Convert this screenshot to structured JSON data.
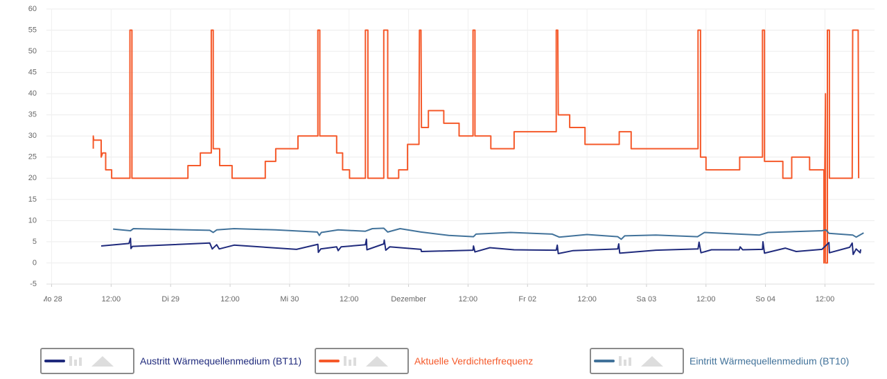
{
  "chart_data": {
    "type": "line",
    "xlim": [
      -1.05,
      166
    ],
    "xticks": [
      {
        "value": 0,
        "label": "Mo 28"
      },
      {
        "value": 12,
        "label": "12:00"
      },
      {
        "value": 24,
        "label": "Di 29"
      },
      {
        "value": 36,
        "label": "12:00"
      },
      {
        "value": 48,
        "label": "Mi 30"
      },
      {
        "value": 60,
        "label": "12:00"
      },
      {
        "value": 72,
        "label": "Dezember"
      },
      {
        "value": 84,
        "label": "12:00"
      },
      {
        "value": 96,
        "label": "Fr 02"
      },
      {
        "value": 108,
        "label": "12:00"
      },
      {
        "value": 120,
        "label": "Sa 03"
      },
      {
        "value": 132,
        "label": "12:00"
      },
      {
        "value": 144,
        "label": "So 04"
      },
      {
        "value": 156,
        "label": "12:00"
      }
    ],
    "ylim": [
      -5,
      60
    ],
    "yticks": [
      -5,
      0,
      5,
      10,
      15,
      20,
      25,
      30,
      35,
      40,
      45,
      50,
      55,
      60
    ],
    "grid": true,
    "series": [
      {
        "name": "Austritt Wärmequellenmedium (BT11)",
        "color": "#1f2a7c",
        "x": [
          10.0,
          15.6,
          15.9,
          16.0,
          16.3,
          31.9,
          32.4,
          33.3,
          33.8,
          36.8,
          49.4,
          53.7,
          53.8,
          54.3,
          57.5,
          57.8,
          58.4,
          63.3,
          63.5,
          63.6,
          67.0,
          67.1,
          67.4,
          68.2,
          74.5,
          74.6,
          85.0,
          85.1,
          85.4,
          88.4,
          93.3,
          101.8,
          102.0,
          102.2,
          105.2,
          114.2,
          114.4,
          114.6,
          121.9,
          130.4,
          130.6,
          131.0,
          133.1,
          138.7,
          138.9,
          139.4,
          143.4,
          143.5,
          143.8,
          148.0,
          150.2,
          155.4,
          156.8,
          156.9,
          161.0,
          161.5,
          161.7,
          162.3,
          163.1,
          163.2
        ],
        "values": [
          4.0,
          4.6,
          5.8,
          3.4,
          3.9,
          4.7,
          3.3,
          4.3,
          3.3,
          4.2,
          3.2,
          4.4,
          2.5,
          3.3,
          3.8,
          2.9,
          3.8,
          4.3,
          5.6,
          3.1,
          4.5,
          5.4,
          3.0,
          3.8,
          3.2,
          2.7,
          3.0,
          4.0,
          2.6,
          3.6,
          3.1,
          3.0,
          4.2,
          2.2,
          2.9,
          3.3,
          4.5,
          2.3,
          3.0,
          3.3,
          4.9,
          2.4,
          3.1,
          3.1,
          3.8,
          3.1,
          3.2,
          5.0,
          2.3,
          3.5,
          2.7,
          3.2,
          4.8,
          2.4,
          3.7,
          4.7,
          2.0,
          3.3,
          2.4,
          3.2
        ]
      },
      {
        "name": "Aktuelle Verdichterfrequenz",
        "color": "#f5592a",
        "x": [
          8.4,
          8.4,
          8.5,
          10.0,
          10.0,
          10.3,
          10.9,
          10.9,
          12.1,
          12.1,
          15.8,
          15.8,
          16.2,
          16.2,
          27.5,
          27.5,
          30.0,
          30.0,
          32.2,
          32.2,
          32.6,
          32.6,
          33.9,
          33.9,
          36.4,
          36.4,
          43.1,
          43.1,
          45.2,
          45.2,
          49.7,
          49.7,
          53.7,
          53.7,
          54.1,
          54.1,
          57.5,
          57.5,
          58.7,
          58.7,
          60.1,
          60.1,
          63.3,
          63.3,
          63.8,
          63.8,
          67.0,
          67.0,
          67.8,
          67.8,
          70.0,
          70.0,
          71.8,
          71.8,
          74.1,
          74.1,
          74.2,
          74.5,
          74.6,
          76.0,
          76.0,
          79.1,
          79.1,
          82.2,
          82.2,
          85.0,
          85.0,
          85.4,
          85.4,
          88.6,
          88.6,
          93.3,
          93.3,
          101.8,
          101.8,
          102.1,
          102.2,
          104.5,
          104.5,
          107.6,
          107.6,
          114.5,
          114.5,
          116.9,
          116.9,
          130.4,
          130.4,
          130.9,
          130.9,
          132.0,
          132.0,
          138.8,
          138.8,
          143.4,
          143.4,
          143.8,
          143.8,
          147.5,
          147.5,
          149.3,
          149.3,
          152.9,
          152.9,
          155.8,
          155.8,
          156.1,
          156.1,
          156.5,
          156.5,
          156.9,
          156.9,
          161.5,
          161.6,
          162.7,
          162.8
        ],
        "values": [
          27,
          30,
          29,
          29,
          25,
          26,
          26,
          22,
          22,
          20,
          20,
          55,
          55,
          20,
          20,
          23,
          23,
          26,
          26,
          55,
          55,
          27,
          27,
          23,
          23,
          20,
          20,
          24,
          24,
          27,
          27,
          30,
          30,
          55,
          55,
          30,
          30,
          26,
          26,
          22,
          22,
          20,
          20,
          55,
          55,
          20,
          20,
          55,
          55,
          20,
          20,
          22,
          22,
          28,
          28,
          33,
          55,
          55,
          32,
          32,
          36,
          36,
          33,
          33,
          30,
          30,
          55,
          55,
          30,
          30,
          27,
          27,
          31,
          31,
          55,
          55,
          35,
          35,
          32,
          32,
          28,
          28,
          31,
          31,
          27,
          27,
          55,
          55,
          25,
          25,
          22,
          22,
          25,
          25,
          55,
          55,
          24,
          24,
          20,
          20,
          25,
          25,
          22,
          22,
          0,
          40,
          0,
          0,
          55,
          55,
          20,
          20,
          55,
          55,
          20
        ]
      },
      {
        "name": "Eintritt Wärmequellenmedium (BT10)",
        "color": "#41729a",
        "x": [
          12.4,
          15.9,
          16.5,
          31.9,
          32.6,
          33.3,
          36.8,
          45.2,
          53.6,
          54.0,
          54.4,
          57.8,
          63.3,
          64.7,
          67.0,
          67.8,
          70.3,
          74.5,
          80.1,
          85.1,
          85.6,
          92.6,
          101.0,
          102.4,
          108.0,
          114.2,
          114.9,
          115.6,
          121.9,
          130.3,
          131.7,
          142.8,
          144.5,
          155.4,
          156.2,
          156.8,
          161.6,
          162.3,
          163.8
        ],
        "values": [
          8.0,
          7.6,
          8.1,
          7.7,
          7.2,
          7.8,
          8.1,
          7.8,
          7.3,
          6.5,
          7.2,
          7.8,
          7.5,
          8.1,
          8.2,
          7.3,
          8.1,
          7.3,
          6.5,
          6.2,
          6.8,
          7.2,
          6.8,
          6.1,
          6.7,
          6.2,
          5.6,
          6.4,
          6.6,
          6.2,
          7.2,
          6.6,
          7.2,
          7.6,
          7.8,
          7.0,
          6.6,
          6.1,
          7.1
        ]
      }
    ]
  }
}
